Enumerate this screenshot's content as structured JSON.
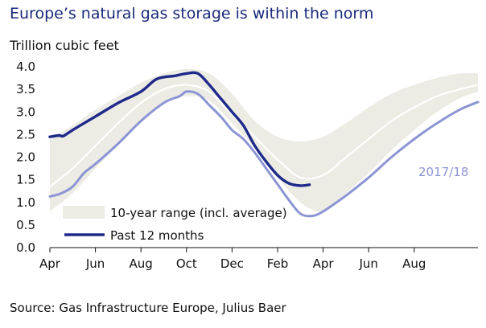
{
  "title": "Europe’s natural gas storage is within the norm",
  "source": "Source: Gas Infrastructure Europe, Julius Baer",
  "colors": {
    "range_fill": "#ecebe4",
    "range_avg": "#ffffff",
    "past": "#1e2a8a",
    "current": "#8c95d4",
    "title": "#1a2a7a"
  },
  "chart_data": {
    "type": "area",
    "ylabel": "Trillion cubic feet",
    "ylim": [
      0,
      4.0
    ],
    "yticks": [
      "0.0",
      "0.5",
      "1.0",
      "1.5",
      "2.0",
      "2.5",
      "3.0",
      "3.5",
      "4.0"
    ],
    "xticks": [
      "Apr",
      "Jun",
      "Aug",
      "Oct",
      "Dec",
      "Feb",
      "Apr",
      "Jun",
      "Aug"
    ],
    "x_unit": "months since April (two-year window)",
    "xlim": [
      0,
      18.8
    ],
    "grid": false,
    "legend_position": "bottom-left",
    "range": {
      "name": "10-year range (incl. average)",
      "x": [
        0,
        1,
        2,
        3,
        4,
        5,
        6,
        7,
        8,
        9,
        10,
        11,
        12,
        13,
        14,
        15,
        16,
        17,
        18,
        18.8
      ],
      "low": [
        0.8,
        1.2,
        1.75,
        2.3,
        2.8,
        3.2,
        3.35,
        3.25,
        2.75,
        2.2,
        1.55,
        1.0,
        0.8,
        1.2,
        1.65,
        2.15,
        2.6,
        3.0,
        3.3,
        3.45
      ],
      "high": [
        2.4,
        2.7,
        3.05,
        3.35,
        3.65,
        3.85,
        3.95,
        3.85,
        3.4,
        2.8,
        2.45,
        2.35,
        2.45,
        2.75,
        3.1,
        3.4,
        3.6,
        3.75,
        3.85,
        3.85
      ],
      "avg": [
        1.35,
        1.75,
        2.25,
        2.75,
        3.2,
        3.5,
        3.6,
        3.45,
        2.95,
        2.45,
        1.95,
        1.55,
        1.6,
        2.0,
        2.4,
        2.8,
        3.1,
        3.35,
        3.5,
        3.6
      ]
    },
    "series": [
      {
        "name": "Past 12 months",
        "x": [
          0,
          0.4,
          0.6,
          1,
          2,
          3,
          4,
          4.7,
          5.5,
          6,
          6.5,
          7,
          7.5,
          8,
          8.5,
          9,
          9.5,
          10,
          10.5,
          11,
          11.4
        ],
        "y": [
          2.45,
          2.48,
          2.47,
          2.6,
          2.9,
          3.2,
          3.45,
          3.73,
          3.8,
          3.85,
          3.85,
          3.6,
          3.3,
          3.0,
          2.7,
          2.25,
          1.9,
          1.6,
          1.42,
          1.37,
          1.39
        ]
      },
      {
        "name": "2017/18",
        "x": [
          0,
          0.5,
          1,
          1.5,
          2,
          3,
          4,
          5,
          5.7,
          6,
          6.5,
          7,
          7.5,
          8,
          8.5,
          9,
          9.5,
          10,
          10.5,
          11,
          11.5,
          12,
          13,
          14,
          15,
          16,
          17,
          18,
          18.8
        ],
        "y": [
          1.13,
          1.2,
          1.35,
          1.65,
          1.85,
          2.3,
          2.8,
          3.2,
          3.35,
          3.45,
          3.4,
          3.15,
          2.9,
          2.6,
          2.4,
          2.1,
          1.75,
          1.4,
          1.05,
          0.75,
          0.7,
          0.8,
          1.15,
          1.55,
          2.0,
          2.4,
          2.75,
          3.05,
          3.22
        ]
      }
    ]
  }
}
